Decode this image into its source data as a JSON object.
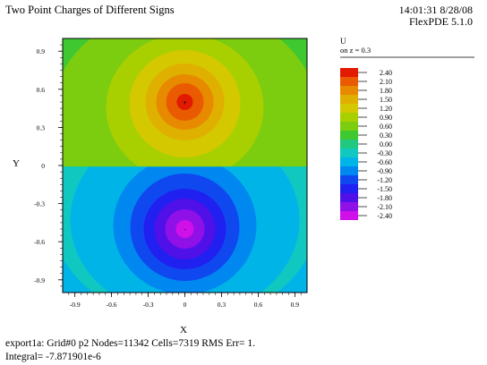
{
  "header": {
    "title": "Two Point Charges of Different Signs",
    "timestamp": "14:01:31 8/28/08",
    "software": "FlexPDE 5.1.0"
  },
  "footer": {
    "line1": "export1a:  Grid#0  p2  Nodes=11342 Cells=7319 RMS Err= 1.",
    "line2": "Integral= -7.871901e-6"
  },
  "chart_data": {
    "type": "heatmap",
    "title": "",
    "xlabel": "X",
    "ylabel": "Y",
    "xlim": [
      -1,
      1
    ],
    "ylim": [
      -1,
      1
    ],
    "xticks": [
      "-0.9",
      "-0.6",
      "-0.3",
      "0",
      "0.3",
      "0.6",
      "0.9"
    ],
    "yticks": [
      "0.9",
      "0.6",
      "0.3",
      "0",
      "-0.3",
      "-0.6",
      "-0.9"
    ],
    "charges": [
      {
        "x": 0,
        "y": 0.5,
        "sign": "+"
      },
      {
        "x": 0,
        "y": -0.5,
        "sign": "-"
      }
    ],
    "legend": {
      "variable": "U",
      "subtitle": "on z = 0.3",
      "placement": "right",
      "levels": [
        2.4,
        2.1,
        1.8,
        1.5,
        1.2,
        0.9,
        0.6,
        0.3,
        0.0,
        -0.3,
        -0.6,
        -0.9,
        -1.2,
        -1.5,
        -1.8,
        -2.1,
        -2.4
      ],
      "labels": [
        "2.40",
        "2.10",
        "1.80",
        "1.50",
        "1.20",
        "0.90",
        "0.60",
        "0.30",
        "0.00",
        "-0.30",
        "-0.60",
        "-0.90",
        "-1.20",
        "-1.50",
        "-1.80",
        "-2.10",
        "-2.40"
      ],
      "colors": [
        "#e11a00",
        "#ea5a00",
        "#e88a00",
        "#e0b000",
        "#d4c800",
        "#a8d000",
        "#7ccc10",
        "#40c830",
        "#20c880",
        "#10c8c0",
        "#00b4e8",
        "#0088f0",
        "#1048f0",
        "#2020f0",
        "#5010e8",
        "#9010e8",
        "#d010e8"
      ]
    }
  }
}
